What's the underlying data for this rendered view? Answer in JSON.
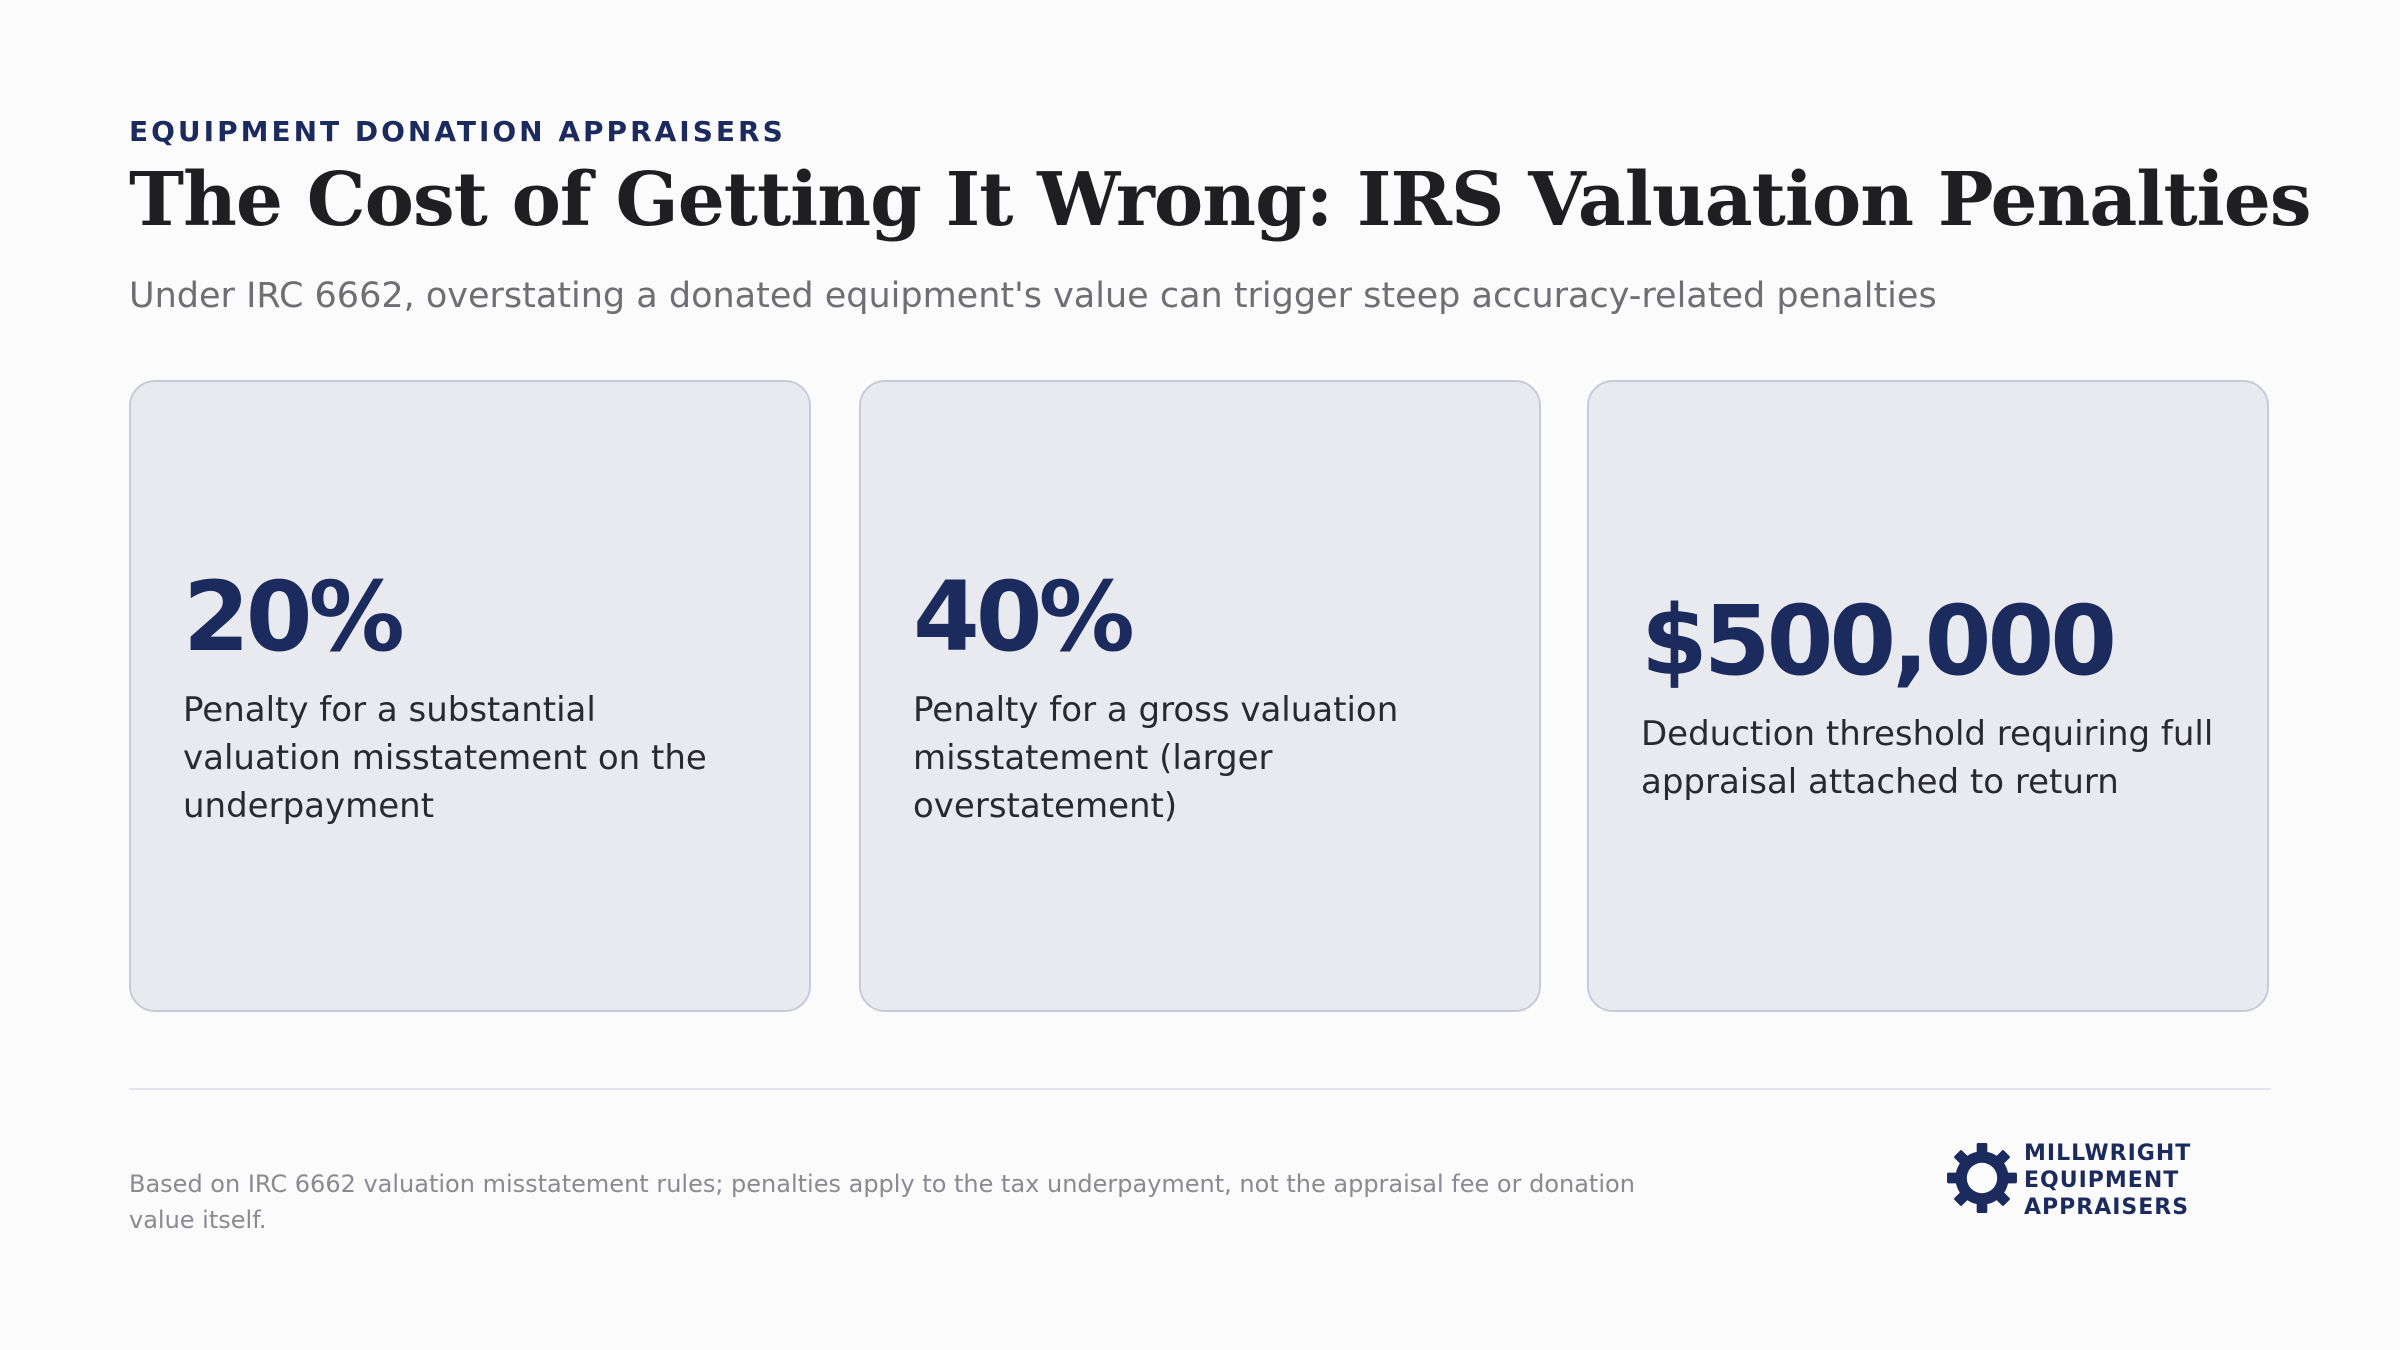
{
  "header": {
    "eyebrow": "EQUIPMENT DONATION APPRAISERS",
    "title": "The Cost of Getting It Wrong: IRS Valuation Penalties",
    "subtitle": "Under IRC 6662, overstating a donated equipment's value can trigger steep accuracy-related penalties"
  },
  "stats": [
    {
      "value": "20%",
      "description": "Penalty for a substantial valuation misstatement on the underpayment"
    },
    {
      "value": "40%",
      "description": "Penalty for a gross valuation misstatement (larger overstatement)"
    },
    {
      "value": "$500,000",
      "description": "Deduction threshold requiring full appraisal attached to return"
    }
  ],
  "footer": {
    "note": "Based on IRC 6662 valuation misstatement rules; penalties apply to the tax underpayment, not the appraisal fee or donation value itself.",
    "logo": {
      "line1": "MILLWRIGHT",
      "line2": "EQUIPMENT",
      "line3": "APPRAISERS",
      "icon": "gear-icon"
    }
  },
  "colors": {
    "accent": "#1c2b5e",
    "card_background": "#e9eaef",
    "card_border": "#c9cad8",
    "page_background": "#fbfbfc"
  }
}
